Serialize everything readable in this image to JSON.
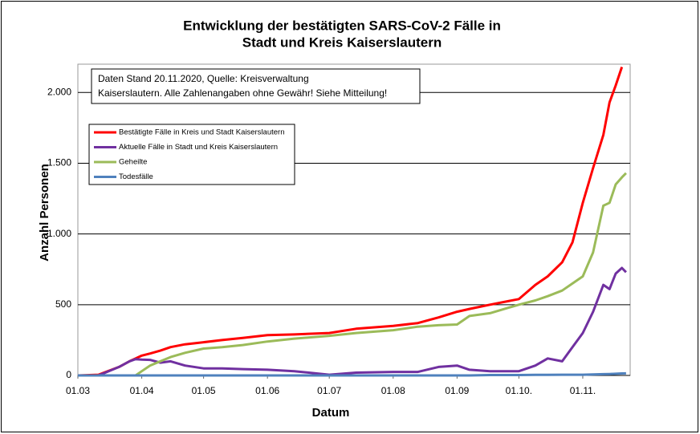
{
  "chart_data": {
    "type": "line",
    "title": [
      "Entwicklung der bestätigten SARS-CoV-2 Fälle in",
      "Stadt und Kreis Kaiserslautern"
    ],
    "annotation": [
      "Daten Stand 20.11.2020, Quelle: Kreisverwaltung",
      "Kaiserslautern. Alle Zahlenangaben ohne Gewähr! Siehe Mitteilung!"
    ],
    "x_label": "Datum",
    "y_label": "Anzahl Personen",
    "x": [
      0,
      10,
      20,
      25,
      28,
      31,
      35,
      40,
      45,
      52,
      61,
      70,
      80,
      92,
      105,
      122,
      135,
      153,
      165,
      175,
      184,
      190,
      200,
      214,
      222,
      228,
      235,
      240,
      245,
      250,
      255,
      258,
      261,
      264,
      266
    ],
    "series": [
      {
        "name": "Bestätigte Fälle in Kreis und Stadt Kaiserslautern",
        "color": "#ff0000",
        "values": [
          0,
          5,
          60,
          100,
          120,
          140,
          155,
          175,
          200,
          220,
          235,
          250,
          265,
          285,
          290,
          300,
          330,
          350,
          370,
          410,
          450,
          470,
          500,
          540,
          640,
          700,
          800,
          940,
          1220,
          1466,
          1700,
          1930,
          2050,
          2180,
          null
        ]
      },
      {
        "name": "Aktuelle Fälle in Stadt und Kreis Kaiserslautern",
        "color": "#7030a0",
        "values": [
          0,
          0,
          60,
          100,
          115,
          112,
          110,
          90,
          100,
          70,
          50,
          50,
          45,
          40,
          30,
          5,
          20,
          25,
          25,
          60,
          70,
          40,
          30,
          30,
          70,
          120,
          100,
          200,
          300,
          450,
          640,
          610,
          720,
          760,
          730
        ]
      },
      {
        "name": "Geheilte",
        "color": "#9bbb59",
        "values": [
          0,
          0,
          0,
          0,
          0,
          30,
          70,
          100,
          130,
          160,
          190,
          200,
          215,
          240,
          260,
          280,
          300,
          320,
          345,
          355,
          360,
          420,
          440,
          500,
          530,
          560,
          600,
          650,
          700,
          870,
          1200,
          1220,
          1350,
          1400,
          1430
        ]
      },
      {
        "name": "Todesfälle",
        "color": "#4f81bd",
        "values": [
          0,
          0,
          0,
          0,
          0,
          0,
          0,
          0,
          0,
          0,
          0,
          0,
          0,
          0,
          0,
          0,
          0,
          0,
          0,
          0,
          0,
          0,
          3,
          3,
          4,
          4,
          5,
          5,
          5,
          7,
          9,
          10,
          12,
          14,
          15
        ]
      }
    ],
    "xlim": [
      0,
      268
    ],
    "xticks": [
      {
        "value": 0,
        "label": "01.03"
      },
      {
        "value": 31,
        "label": "01.04"
      },
      {
        "value": 61,
        "label": "01.05"
      },
      {
        "value": 92,
        "label": "01.06"
      },
      {
        "value": 122,
        "label": "01.07"
      },
      {
        "value": 153,
        "label": "01.08"
      },
      {
        "value": 184,
        "label": "01.09"
      },
      {
        "value": 214,
        "label": "01.10."
      },
      {
        "value": 245,
        "label": "01.11."
      }
    ],
    "ylim": [
      0,
      2200
    ],
    "yticks": [
      0,
      500,
      {
        "value": 1000,
        "label": "1.000"
      },
      {
        "value": 1500,
        "label": "1.500"
      },
      {
        "value": 2000,
        "label": "2.000"
      }
    ],
    "grid": true,
    "legend": "upper left"
  }
}
